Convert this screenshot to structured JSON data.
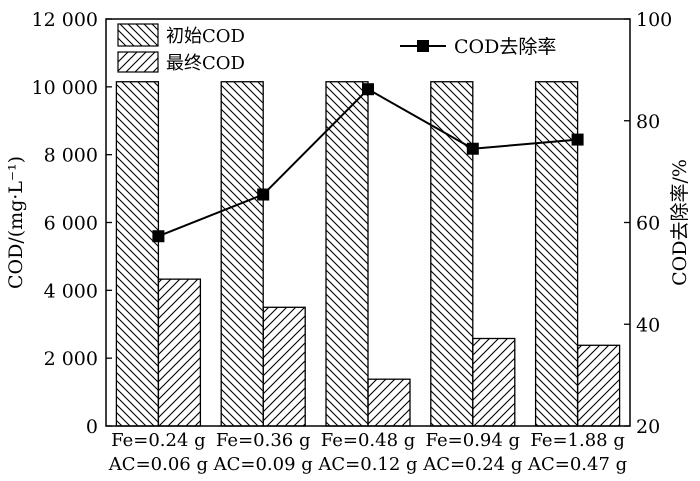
{
  "chart_data": {
    "type": "bar",
    "categories": [
      [
        "Fe=0.24 g",
        "AC=0.06 g"
      ],
      [
        "Fe=0.36 g",
        "AC=0.09 g"
      ],
      [
        "Fe=0.48 g",
        "AC=0.12 g"
      ],
      [
        "Fe=0.94 g",
        "AC=0.24 g"
      ],
      [
        "Fe=1.88 g",
        "AC=0.47 g"
      ]
    ],
    "series": [
      {
        "name": "初始COD",
        "type": "bar",
        "axis": "left",
        "pattern": "backslash-hatch",
        "values": [
          10150,
          10150,
          10150,
          10150,
          10150
        ]
      },
      {
        "name": "最终COD",
        "type": "bar",
        "axis": "left",
        "pattern": "slash-hatch",
        "values": [
          4330,
          3500,
          1380,
          2580,
          2380
        ]
      },
      {
        "name": "COD去除率",
        "type": "line",
        "axis": "right",
        "marker": "square",
        "values": [
          57.3,
          65.5,
          86.2,
          74.5,
          76.3
        ]
      }
    ],
    "ylabel": "COD/(mg·L⁻¹)",
    "y2label": "COD去除率/%",
    "ylim": [
      0,
      12000
    ],
    "y2lim": [
      20,
      100
    ],
    "yticks": [
      0,
      2000,
      4000,
      6000,
      8000,
      10000,
      12000
    ],
    "ytick_labels": [
      "0",
      "2 000",
      "4 000",
      "6 000",
      "8 000",
      "10 000",
      "12 000"
    ],
    "y2ticks": [
      20,
      40,
      60,
      80,
      100
    ],
    "y2tick_labels": [
      "20",
      "40",
      "60",
      "80",
      "100"
    ],
    "grid": false,
    "legend_bars_position": "top-left",
    "legend_line_position": "top-right",
    "colors": {
      "ink": "#000000",
      "background": "#ffffff"
    }
  }
}
